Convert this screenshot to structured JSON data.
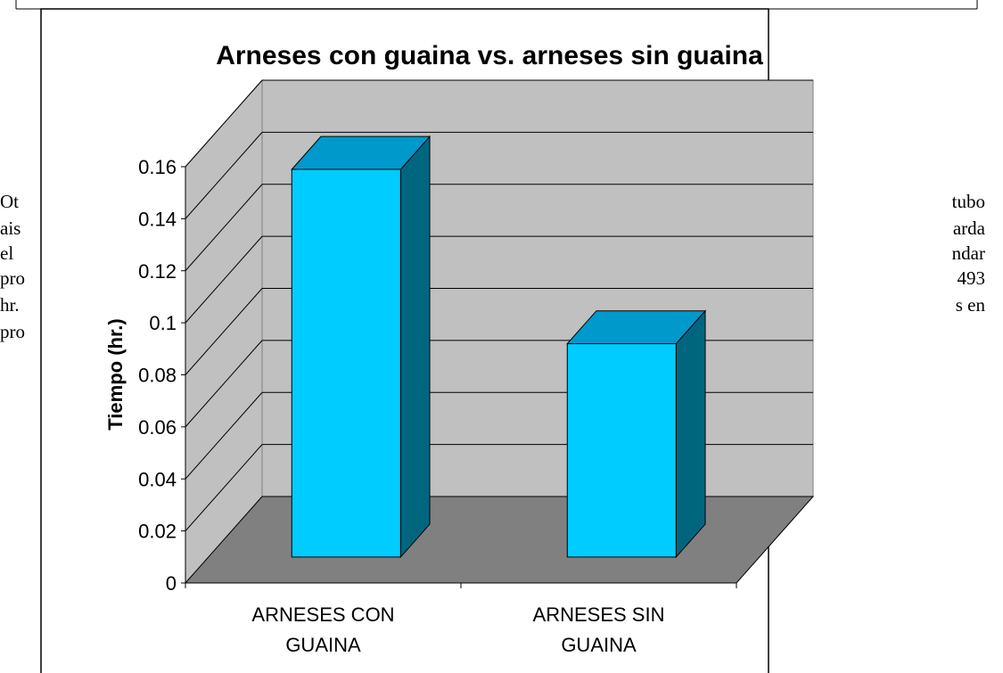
{
  "background_text": {
    "left": [
      "Ot",
      "ais",
      "el",
      "pro",
      "hr.",
      "pro"
    ],
    "right": [
      "tubo",
      "arda",
      "ndar",
      "493",
      "s en"
    ]
  },
  "chart_data": {
    "type": "bar3d",
    "title": "Arneses con guaina vs. arneses sin guaina",
    "y_label": "Tiempo (hr.)",
    "categories": [
      "ARNESES CON GUAINA",
      "ARNESES SIN GUAINA"
    ],
    "values": [
      0.149,
      0.082
    ],
    "color": "#00ccff",
    "ylim": [
      0,
      0.16
    ],
    "yticks": [
      0,
      0.02,
      0.04,
      0.06,
      0.08,
      0.1,
      0.12,
      0.14,
      0.16
    ],
    "grid": true
  }
}
